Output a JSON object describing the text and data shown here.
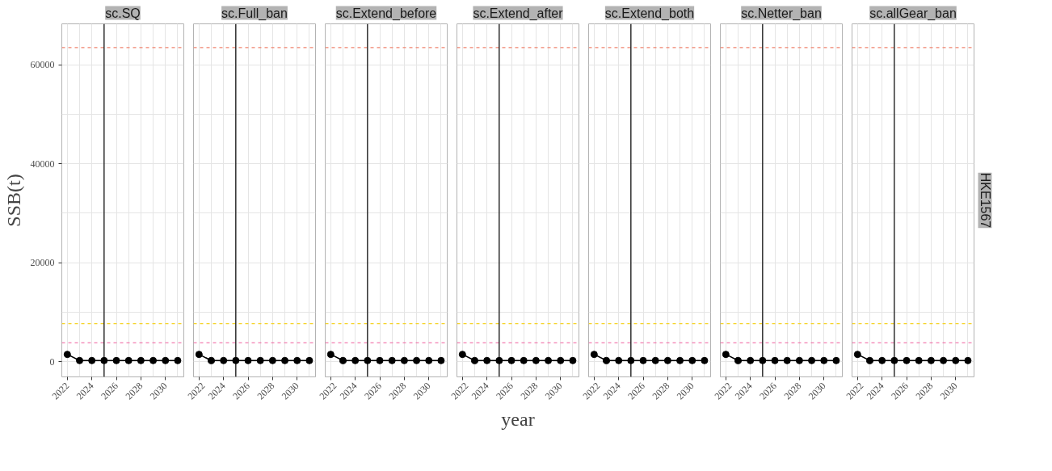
{
  "chart_data": [
    {
      "type": "line",
      "title": "sc.SQ",
      "ylabel": "SSB(t)",
      "x": [
        2022,
        2023,
        2024,
        2025,
        2026,
        2027,
        2028,
        2029,
        2030,
        2031
      ],
      "series": [
        {
          "color": "#000000",
          "values": [
            1450,
            200,
            200,
            200,
            200,
            200,
            200,
            200,
            200,
            200
          ]
        }
      ],
      "xlim": [
        2021.55,
        2031.5
      ],
      "ylim": [
        -3100,
        68300
      ],
      "xticks": [
        2022,
        2024,
        2026,
        2028,
        2030
      ],
      "yticks": [
        0,
        20000,
        40000,
        60000
      ],
      "grid": true,
      "marker": "circle",
      "line_style": "solid",
      "ref_lines": [
        {
          "axis": "y",
          "value": 63500,
          "color": "#f0826e",
          "line_style": "dashed"
        },
        {
          "axis": "y",
          "value": 7650,
          "color": "#f5d327",
          "line_style": "dashed"
        },
        {
          "axis": "y",
          "value": 3800,
          "color": "#f05c9c",
          "line_style": "dashed"
        },
        {
          "axis": "x",
          "value": 2025,
          "color": "#000000",
          "line_style": "solid"
        }
      ]
    },
    {
      "type": "line",
      "title": "sc.Full_ban",
      "x": [
        2022,
        2023,
        2024,
        2025,
        2026,
        2027,
        2028,
        2029,
        2030,
        2031
      ],
      "series": [
        {
          "color": "#000000",
          "values": [
            1450,
            200,
            200,
            200,
            200,
            200,
            200,
            200,
            200,
            200
          ]
        }
      ],
      "xlim": [
        2021.55,
        2031.5
      ],
      "ylim": [
        -3100,
        68300
      ],
      "xticks": [
        2022,
        2024,
        2026,
        2028,
        2030
      ],
      "yticks": [
        0,
        20000,
        40000,
        60000
      ],
      "tick_labels": "x",
      "grid": true,
      "marker": "circle",
      "line_style": "solid",
      "ref_lines": [
        {
          "axis": "y",
          "value": 63500,
          "color": "#f0826e",
          "line_style": "dashed"
        },
        {
          "axis": "y",
          "value": 7650,
          "color": "#f5d327",
          "line_style": "dashed"
        },
        {
          "axis": "y",
          "value": 3800,
          "color": "#f05c9c",
          "line_style": "dashed"
        },
        {
          "axis": "x",
          "value": 2025,
          "color": "#000000",
          "line_style": "solid"
        }
      ]
    },
    {
      "type": "line",
      "title": "sc.Extend_before",
      "x": [
        2022,
        2023,
        2024,
        2025,
        2026,
        2027,
        2028,
        2029,
        2030,
        2031
      ],
      "series": [
        {
          "color": "#000000",
          "values": [
            1450,
            200,
            200,
            200,
            200,
            200,
            200,
            200,
            200,
            200
          ]
        }
      ],
      "xlim": [
        2021.55,
        2031.5
      ],
      "ylim": [
        -3100,
        68300
      ],
      "xticks": [
        2022,
        2024,
        2026,
        2028,
        2030
      ],
      "yticks": [
        0,
        20000,
        40000,
        60000
      ],
      "tick_labels": "x",
      "grid": true,
      "marker": "circle",
      "line_style": "solid",
      "ref_lines": [
        {
          "axis": "y",
          "value": 63500,
          "color": "#f0826e",
          "line_style": "dashed"
        },
        {
          "axis": "y",
          "value": 7650,
          "color": "#f5d327",
          "line_style": "dashed"
        },
        {
          "axis": "y",
          "value": 3800,
          "color": "#f05c9c",
          "line_style": "dashed"
        },
        {
          "axis": "x",
          "value": 2025,
          "color": "#000000",
          "line_style": "solid"
        }
      ]
    },
    {
      "type": "line",
      "title": "sc.Extend_after",
      "xlabel": "year",
      "x": [
        2022,
        2023,
        2024,
        2025,
        2026,
        2027,
        2028,
        2029,
        2030,
        2031
      ],
      "series": [
        {
          "color": "#000000",
          "values": [
            1450,
            200,
            200,
            200,
            200,
            200,
            200,
            200,
            200,
            200
          ]
        }
      ],
      "xlim": [
        2021.55,
        2031.5
      ],
      "ylim": [
        -3100,
        68300
      ],
      "xticks": [
        2022,
        2024,
        2026,
        2028,
        2030
      ],
      "yticks": [
        0,
        20000,
        40000,
        60000
      ],
      "tick_labels": "x",
      "grid": true,
      "marker": "circle",
      "line_style": "solid",
      "ref_lines": [
        {
          "axis": "y",
          "value": 63500,
          "color": "#f0826e",
          "line_style": "dashed"
        },
        {
          "axis": "y",
          "value": 7650,
          "color": "#f5d327",
          "line_style": "dashed"
        },
        {
          "axis": "y",
          "value": 3800,
          "color": "#f05c9c",
          "line_style": "dashed"
        },
        {
          "axis": "x",
          "value": 2025,
          "color": "#000000",
          "line_style": "solid"
        }
      ]
    },
    {
      "type": "line",
      "title": "sc.Extend_both",
      "x": [
        2022,
        2023,
        2024,
        2025,
        2026,
        2027,
        2028,
        2029,
        2030,
        2031
      ],
      "series": [
        {
          "color": "#000000",
          "values": [
            1450,
            200,
            200,
            200,
            200,
            200,
            200,
            200,
            200,
            200
          ]
        }
      ],
      "xlim": [
        2021.55,
        2031.5
      ],
      "ylim": [
        -3100,
        68300
      ],
      "xticks": [
        2022,
        2024,
        2026,
        2028,
        2030
      ],
      "yticks": [
        0,
        20000,
        40000,
        60000
      ],
      "tick_labels": "x",
      "grid": true,
      "marker": "circle",
      "line_style": "solid",
      "ref_lines": [
        {
          "axis": "y",
          "value": 63500,
          "color": "#f0826e",
          "line_style": "dashed"
        },
        {
          "axis": "y",
          "value": 7650,
          "color": "#f5d327",
          "line_style": "dashed"
        },
        {
          "axis": "y",
          "value": 3800,
          "color": "#f05c9c",
          "line_style": "dashed"
        },
        {
          "axis": "x",
          "value": 2025,
          "color": "#000000",
          "line_style": "solid"
        }
      ]
    },
    {
      "type": "line",
      "title": "sc.Netter_ban",
      "x": [
        2022,
        2023,
        2024,
        2025,
        2026,
        2027,
        2028,
        2029,
        2030,
        2031
      ],
      "series": [
        {
          "color": "#000000",
          "values": [
            1450,
            200,
            200,
            200,
            200,
            200,
            200,
            200,
            200,
            200
          ]
        }
      ],
      "xlim": [
        2021.55,
        2031.5
      ],
      "ylim": [
        -3100,
        68300
      ],
      "xticks": [
        2022,
        2024,
        2026,
        2028,
        2030
      ],
      "yticks": [
        0,
        20000,
        40000,
        60000
      ],
      "tick_labels": "x",
      "grid": true,
      "marker": "circle",
      "line_style": "solid",
      "ref_lines": [
        {
          "axis": "y",
          "value": 63500,
          "color": "#f0826e",
          "line_style": "dashed"
        },
        {
          "axis": "y",
          "value": 7650,
          "color": "#f5d327",
          "line_style": "dashed"
        },
        {
          "axis": "y",
          "value": 3800,
          "color": "#f05c9c",
          "line_style": "dashed"
        },
        {
          "axis": "x",
          "value": 2025,
          "color": "#000000",
          "line_style": "solid"
        }
      ]
    },
    {
      "type": "line",
      "title": "sc.allGear_ban",
      "annotations": [
        "HKE1567"
      ],
      "x": [
        2022,
        2023,
        2024,
        2025,
        2026,
        2027,
        2028,
        2029,
        2030,
        2031
      ],
      "series": [
        {
          "color": "#000000",
          "values": [
            1450,
            200,
            200,
            200,
            200,
            200,
            200,
            200,
            200,
            200
          ]
        }
      ],
      "xlim": [
        2021.55,
        2031.5
      ],
      "ylim": [
        -3100,
        68300
      ],
      "xticks": [
        2022,
        2024,
        2026,
        2028,
        2030
      ],
      "yticks": [
        0,
        20000,
        40000,
        60000
      ],
      "tick_labels": "x",
      "grid": true,
      "marker": "circle",
      "line_style": "solid",
      "ref_lines": [
        {
          "axis": "y",
          "value": 63500,
          "color": "#f0826e",
          "line_style": "dashed"
        },
        {
          "axis": "y",
          "value": 7650,
          "color": "#f5d327",
          "line_style": "dashed"
        },
        {
          "axis": "y",
          "value": 3800,
          "color": "#f05c9c",
          "line_style": "dashed"
        },
        {
          "axis": "x",
          "value": 2025,
          "color": "#000000",
          "line_style": "solid"
        }
      ]
    }
  ]
}
